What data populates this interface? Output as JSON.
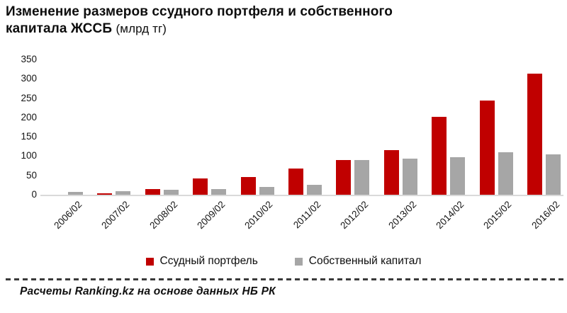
{
  "title": {
    "main": "Изменение размеров ссудного портфеля и собственного капитала ЖССБ",
    "unit": "(млрд тг)"
  },
  "chart_data": {
    "type": "bar",
    "title": "Изменение размеров ссудного портфеля и собственного капитала ЖССБ (млрд тг)",
    "categories": [
      "2006/02",
      "2007/02",
      "2008/02",
      "2009/02",
      "2010/02",
      "2011/02",
      "2012/02",
      "2013/02",
      "2014/02",
      "2015/02",
      "2016/02"
    ],
    "series": [
      {
        "name": "Ссудный портфель",
        "color": "#C00000",
        "values": [
          0.5,
          3,
          14,
          42,
          46,
          68,
          90,
          116,
          202,
          244,
          314
        ]
      },
      {
        "name": "Собственный капитал",
        "color": "#A6A6A6",
        "values": [
          7,
          10,
          13,
          15,
          20,
          26,
          89,
          93,
          97,
          110,
          104
        ]
      }
    ],
    "xlabel": "",
    "ylabel": "",
    "ylim": [
      0,
      350
    ],
    "ytick_step": 50,
    "grid": false,
    "legend_position": "bottom",
    "baseline_color": "#D9D9D9"
  },
  "footer": {
    "source": "Расчеты Ranking.kz на основе данных  НБ РК"
  }
}
